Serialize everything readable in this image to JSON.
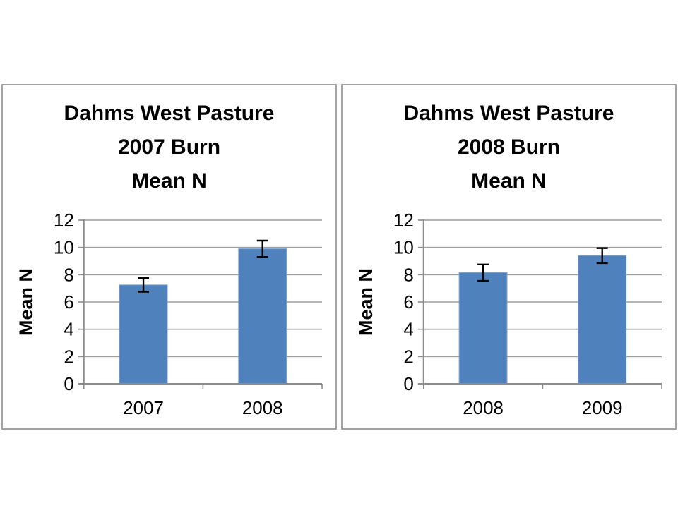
{
  "chart_data": [
    {
      "type": "bar",
      "title": "Dahms West Pasture 2007 Burn Mean N",
      "title_lines": [
        "Dahms West Pasture",
        "2007 Burn",
        "Mean N"
      ],
      "ylabel": "Mean N",
      "xlabel": "",
      "categories": [
        "2007",
        "2008"
      ],
      "values": [
        7.25,
        9.9
      ],
      "errors": [
        0.5,
        0.6
      ],
      "yticks": [
        0,
        2,
        4,
        6,
        8,
        10,
        12
      ],
      "ylim": [
        0,
        12
      ],
      "grid": true,
      "legend": "none"
    },
    {
      "type": "bar",
      "title": "Dahms West Pasture 2008 Burn Mean N",
      "title_lines": [
        "Dahms West Pasture",
        "2008 Burn",
        "Mean N"
      ],
      "ylabel": "Mean N",
      "xlabel": "",
      "categories": [
        "2008",
        "2009"
      ],
      "values": [
        8.15,
        9.4
      ],
      "errors": [
        0.6,
        0.55
      ],
      "yticks": [
        0,
        2,
        4,
        6,
        8,
        10,
        12
      ],
      "ylim": [
        0,
        12
      ],
      "grid": true,
      "legend": "none"
    }
  ],
  "colors": {
    "bar_fill": "#4F81BD",
    "bar_edge": "#7FA3CE",
    "gridline": "#9d9d9d",
    "axis": "#8c8c8c",
    "error_bar": "#000000",
    "panel_border": "#a3a3a3",
    "text": "#000000",
    "background": "#ffffff"
  }
}
